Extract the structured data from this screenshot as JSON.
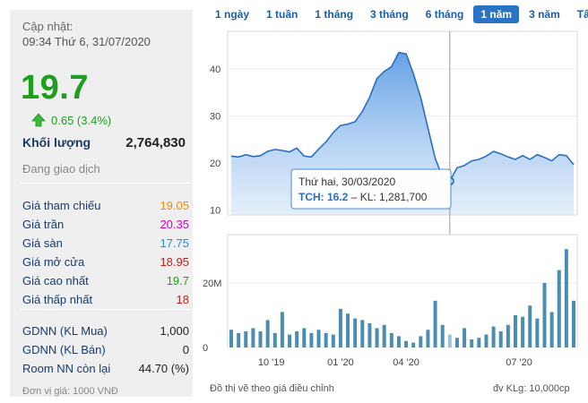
{
  "left": {
    "update_label": "Cập nhật:",
    "update_time": "09:34 Thứ 6, 31/07/2020",
    "price": "19.7",
    "change": "0.65 (3.4%)",
    "volume_label": "Khối lượng",
    "volume_value": "2,764,830",
    "status": "Đang giao dịch",
    "stats": [
      {
        "label": "Giá tham chiếu",
        "value": "19.05",
        "color": "#f28c00"
      },
      {
        "label": "Giá trần",
        "value": "20.35",
        "color": "#d400c8"
      },
      {
        "label": "Giá sàn",
        "value": "17.75",
        "color": "#1a8fd8"
      },
      {
        "label": "Giá mở cửa",
        "value": "18.95",
        "color": "#c41e1e"
      },
      {
        "label": "Giá cao nhất",
        "value": "19.7",
        "color": "#1e9e1e"
      },
      {
        "label": "Giá thấp nhất",
        "value": "18",
        "color": "#c41e1e"
      }
    ],
    "foreign": [
      {
        "label": "GDNN (KL Mua)",
        "value": "1,000"
      },
      {
        "label": "GDNN (KL Bán)",
        "value": "0"
      },
      {
        "label": "Room NN còn lại",
        "value": "44.70 (%)"
      }
    ],
    "unit": "Đơn vị giá: 1000 VNĐ"
  },
  "ranges": [
    "1 ngày",
    "1 tuần",
    "1 tháng",
    "3 tháng",
    "6 tháng",
    "1 năm",
    "3 năm",
    "Tất cả"
  ],
  "active_range": "1 năm",
  "tooltip": {
    "date": "Thứ hai, 30/03/2020",
    "ticker_value": "TCH: 16.2",
    "volume": " – KL: 1,281,700"
  },
  "footer": {
    "left": "Đồ thị vẽ theo giá điều chỉnh",
    "right": "đv KLg: 10,000cp"
  },
  "colors": {
    "accent": "#2b73c4",
    "up": "#1e9e1e",
    "line": "#2a6fc0",
    "bar": "#4a8db0"
  },
  "chart_data": {
    "type": "area",
    "price_axis": {
      "ticks": [
        10,
        20,
        30,
        40
      ],
      "ylim": [
        9,
        48
      ]
    },
    "volume_axis": {
      "ticks": [
        "0",
        "20M"
      ],
      "tick_values": [
        0,
        20
      ],
      "ylim": [
        0,
        35
      ]
    },
    "x_ticks": [
      "10 '19",
      "01 '20",
      "04 '20",
      "07 '20"
    ],
    "price": [
      21.5,
      21.3,
      21.8,
      21.4,
      21.6,
      22.5,
      22.9,
      22.7,
      22.4,
      23.2,
      21.5,
      21.3,
      23.0,
      24.5,
      26.5,
      28.0,
      28.3,
      28.8,
      31.0,
      34.0,
      38.0,
      39.5,
      40.5,
      43.5,
      43.2,
      39.0,
      34.0,
      27.5,
      21.0,
      17.0,
      16.2,
      19.0,
      19.5,
      20.5,
      20.8,
      21.5,
      22.5,
      22.0,
      21.3,
      20.8,
      21.6,
      20.8,
      21.8,
      21.2,
      20.5,
      21.8,
      21.6,
      19.7
    ],
    "volume_10k": [
      5.5,
      4.5,
      5,
      6,
      5,
      8.5,
      4.5,
      11,
      4,
      5,
      6,
      4.5,
      5.5,
      4.5,
      4,
      12,
      10.5,
      9,
      8.5,
      7.5,
      6,
      7,
      4.5,
      3.5,
      2,
      1.5,
      3.5,
      5.5,
      14.5,
      7,
      4,
      3,
      6,
      2.5,
      3,
      4,
      6.5,
      5,
      7,
      10,
      9.5,
      13,
      9,
      20,
      11,
      24,
      30.5,
      14.5
    ],
    "highlight_index": 30
  }
}
